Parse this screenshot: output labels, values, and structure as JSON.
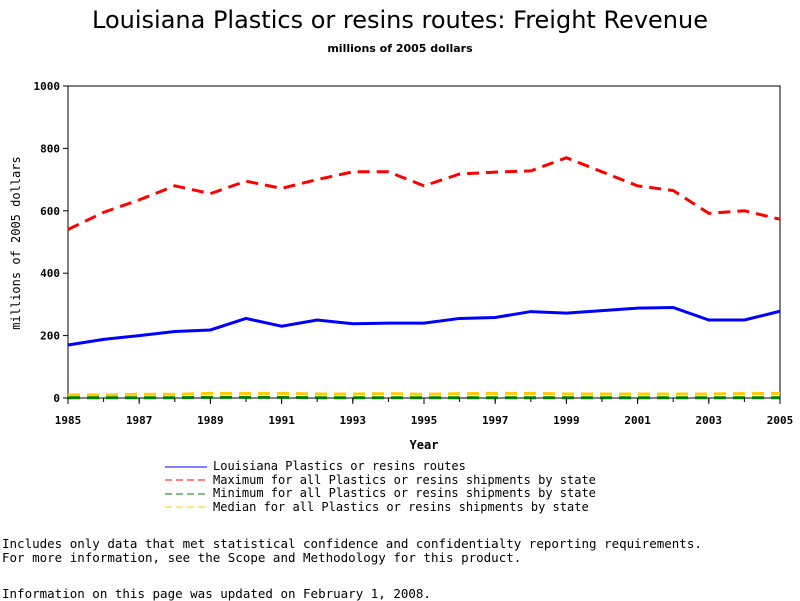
{
  "chart_data": {
    "type": "line",
    "title": "Louisiana Plastics or resins routes: Freight Revenue",
    "subtitle": "millions of 2005 dollars",
    "xlabel": "Year",
    "ylabel": "millions of 2005 dollars",
    "xlim": [
      1985,
      2005
    ],
    "ylim": [
      0,
      1000
    ],
    "y_ticks": [
      0,
      200,
      400,
      600,
      800,
      1000
    ],
    "x_ticks": [
      1985,
      1987,
      1989,
      1991,
      1993,
      1995,
      1997,
      1999,
      2001,
      2003,
      2005
    ],
    "x": [
      1985,
      1986,
      1987,
      1988,
      1989,
      1990,
      1991,
      1992,
      1993,
      1994,
      1995,
      1996,
      1997,
      1998,
      1999,
      2000,
      2001,
      2002,
      2003,
      2004,
      2005
    ],
    "series": [
      {
        "name": "Louisiana Plastics or resins routes",
        "color": "#0000ff",
        "style": "solid",
        "values": [
          170,
          188,
          200,
          213,
          218,
          255,
          230,
          250,
          238,
          240,
          240,
          255,
          258,
          277,
          272,
          280,
          288,
          290,
          250,
          250,
          278
        ]
      },
      {
        "name": "Maximum for all Plastics or resins shipments by state",
        "color": "#ff0000",
        "style": "dashed",
        "values": [
          540,
          595,
          635,
          680,
          655,
          695,
          672,
          700,
          725,
          725,
          680,
          718,
          724,
          728,
          770,
          725,
          680,
          665,
          592,
          600,
          573
        ]
      },
      {
        "name": "Minimum for all Plastics or resins shipments by state",
        "color": "#008000",
        "style": "dashed",
        "values": [
          1,
          1,
          1,
          1,
          2,
          2,
          2,
          1,
          1,
          1,
          1,
          1,
          1,
          1,
          1,
          1,
          1,
          1,
          1,
          1,
          1
        ]
      },
      {
        "name": "Median for all Plastics or resins shipments by state",
        "color": "#ffcc00",
        "style": "dashed",
        "values": [
          10,
          10,
          12,
          12,
          15,
          15,
          15,
          13,
          13,
          14,
          12,
          14,
          15,
          15,
          13,
          13,
          13,
          13,
          13,
          14,
          15
        ]
      }
    ],
    "grid": false,
    "legend_position": "bottom"
  },
  "notes": {
    "line1": "Includes only data that met statistical confidence and confidentialty reporting requirements.",
    "line2": "For more information, see the Scope and Methodology for this product.",
    "updated": "Information on this page was updated on February 1, 2008."
  }
}
